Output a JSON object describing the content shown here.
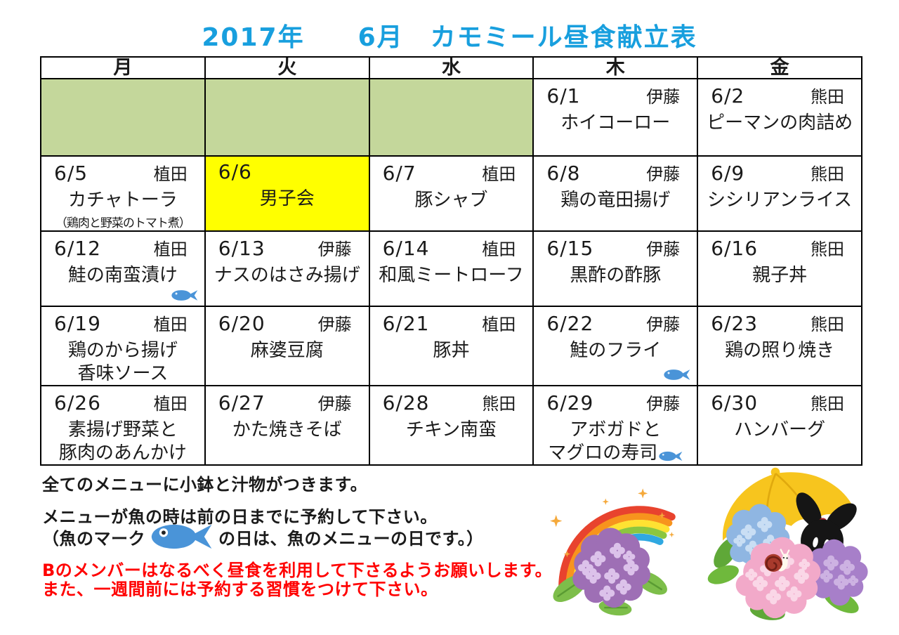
{
  "title": "2017年　　6月　カモミール昼食献立表",
  "calendar": {
    "day_headers": [
      "月",
      "火",
      "水",
      "木",
      "金"
    ],
    "weeks": [
      [
        {
          "blank": true
        },
        {
          "blank": true
        },
        {
          "blank": true
        },
        {
          "date": "6/1",
          "cook": "伊藤",
          "menu": [
            "ホイコーロー"
          ]
        },
        {
          "date": "6/2",
          "cook": "熊田",
          "menu": [
            "ピーマンの肉詰め"
          ]
        }
      ],
      [
        {
          "date": "6/5",
          "cook": "植田",
          "menu": [
            "カチャトーラ"
          ],
          "note": "（鶏肉と野菜のトマト煮）"
        },
        {
          "date": "6/6",
          "cook": "",
          "menu": [
            "男子会"
          ],
          "highlight": true
        },
        {
          "date": "6/7",
          "cook": "植田",
          "menu": [
            "豚シャブ"
          ]
        },
        {
          "date": "6/8",
          "cook": "伊藤",
          "menu": [
            "鶏の竜田揚げ"
          ]
        },
        {
          "date": "6/9",
          "cook": "熊田",
          "menu": [
            "シシリアンライス"
          ]
        }
      ],
      [
        {
          "date": "6/12",
          "cook": "植田",
          "menu": [
            "鮭の南蛮漬け"
          ],
          "fish": "corner"
        },
        {
          "date": "6/13",
          "cook": "伊藤",
          "menu": [
            "ナスのはさみ揚げ"
          ]
        },
        {
          "date": "6/14",
          "cook": "植田",
          "menu": [
            "和風ミートローフ"
          ]
        },
        {
          "date": "6/15",
          "cook": "伊藤",
          "menu": [
            "黒酢の酢豚"
          ]
        },
        {
          "date": "6/16",
          "cook": "熊田",
          "menu": [
            "親子丼"
          ]
        }
      ],
      [
        {
          "date": "6/19",
          "cook": "植田",
          "menu": [
            "鶏のから揚げ",
            "香味ソース"
          ]
        },
        {
          "date": "6/20",
          "cook": "伊藤",
          "menu": [
            "麻婆豆腐"
          ]
        },
        {
          "date": "6/21",
          "cook": "植田",
          "menu": [
            "豚丼"
          ]
        },
        {
          "date": "6/22",
          "cook": "伊藤",
          "menu": [
            "鮭のフライ"
          ],
          "fish": "corner"
        },
        {
          "date": "6/23",
          "cook": "熊田",
          "menu": [
            "鶏の照り焼き"
          ]
        }
      ],
      [
        {
          "date": "6/26",
          "cook": "植田",
          "menu": [
            "素揚げ野菜と",
            "豚肉のあんかけ"
          ]
        },
        {
          "date": "6/27",
          "cook": "伊藤",
          "menu": [
            "かた焼きそば"
          ]
        },
        {
          "date": "6/28",
          "cook": "熊田",
          "menu": [
            "チキン南蛮"
          ]
        },
        {
          "date": "6/29",
          "cook": "伊藤",
          "menu": [
            "アボガドと",
            "マグロの寿司"
          ],
          "fish": "inline"
        },
        {
          "date": "6/30",
          "cook": "熊田",
          "menu": [
            "ハンバーグ"
          ]
        }
      ]
    ]
  },
  "notes": {
    "line1": "全てのメニューに小鉢と汁物がつきます。",
    "line2": "メニューが魚の時は前の日までに予約して下さい。",
    "fish_mark_prefix": "（魚のマーク",
    "fish_mark_suffix": "の日は、魚のメニューの日です。）",
    "red_line1": "Bのメンバーはなるべく昼食を利用して下さるようお願いします。",
    "red_line2": "また、一週間前には予約する習慣をつけて下さい。"
  },
  "icons": {
    "fish": "fish-icon",
    "illustration_left": "rainbow-hydrangea-illustration",
    "illustration_right": "umbrella-hydrangea-snail-illustration"
  },
  "colors": {
    "title_blue": "#189FDE",
    "blank_green": "#C4D79B",
    "highlight_yellow": "#FFFF00",
    "note_red": "#FF0000",
    "fish_blue": "#4A94D8"
  }
}
